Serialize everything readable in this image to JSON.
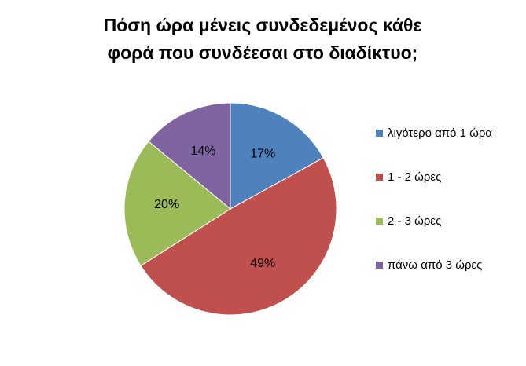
{
  "chart_data": {
    "type": "pie",
    "title": [
      "Πόση ώρα μένεις συνδεδεμένος κάθε",
      "φορά που συνδέεσαι στο διαδίκτυο;"
    ],
    "categories": [
      "λιγότερο από 1 ώρα",
      "1 - 2 ώρες",
      "2 - 3 ώρες",
      "πάνω από 3 ώρες"
    ],
    "values": [
      17,
      49,
      20,
      14
    ],
    "value_labels": [
      "17%",
      "49%",
      "20%",
      "14%"
    ],
    "colors": [
      "#4f81bd",
      "#c0504d",
      "#9bbb59",
      "#8064a2"
    ],
    "legend": "right"
  }
}
